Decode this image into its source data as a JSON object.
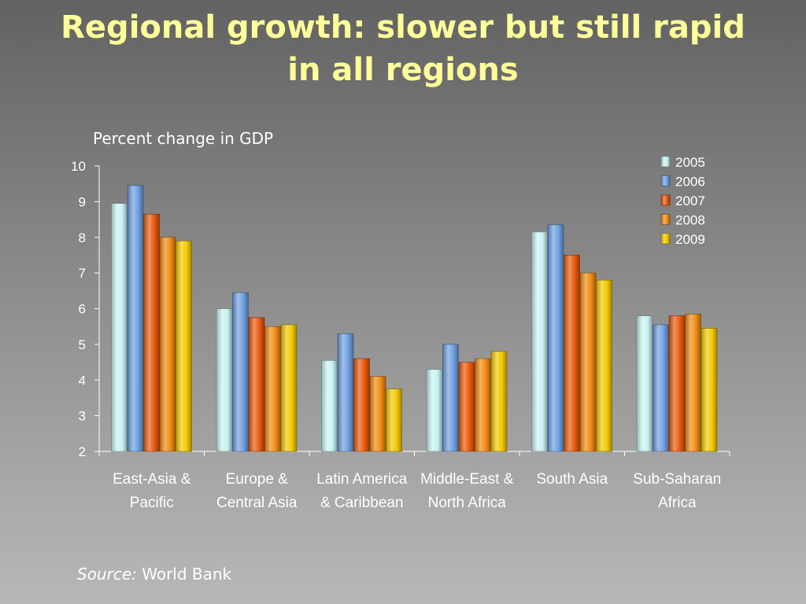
{
  "slide": {
    "title_line1": "Regional growth: slower but still rapid",
    "title_line2": "in all regions",
    "source_label": "Source:",
    "source_value": "World Bank"
  },
  "chart_data": {
    "type": "bar",
    "ylabel": "Percent change in GDP",
    "ylim": [
      2,
      10
    ],
    "yticks": [
      2,
      3,
      4,
      5,
      6,
      7,
      8,
      9,
      10
    ],
    "grid": false,
    "legend_position": "top-right",
    "categories": [
      [
        "East-Asia &",
        "Pacific"
      ],
      [
        "Europe &",
        "Central Asia"
      ],
      [
        "Latin America",
        "& Caribbean"
      ],
      [
        "Middle-East &",
        "North Africa"
      ],
      [
        "South Asia"
      ],
      [
        "Sub-Saharan",
        "Africa"
      ]
    ],
    "series": [
      {
        "name": "2005",
        "color": "#c8f2f2",
        "values": [
          8.95,
          6.0,
          4.55,
          4.3,
          8.15,
          5.8
        ]
      },
      {
        "name": "2006",
        "color": "#6e9ee0",
        "values": [
          9.45,
          6.45,
          5.3,
          5.0,
          8.35,
          5.55
        ]
      },
      {
        "name": "2007",
        "color": "#e8580a",
        "values": [
          8.65,
          5.75,
          4.6,
          4.5,
          7.5,
          5.8
        ]
      },
      {
        "name": "2008",
        "color": "#f08a10",
        "values": [
          8.0,
          5.5,
          4.1,
          4.6,
          7.0,
          5.85
        ]
      },
      {
        "name": "2009",
        "color": "#f2c800",
        "values": [
          7.9,
          5.55,
          3.75,
          4.8,
          6.8,
          5.45
        ]
      }
    ]
  }
}
